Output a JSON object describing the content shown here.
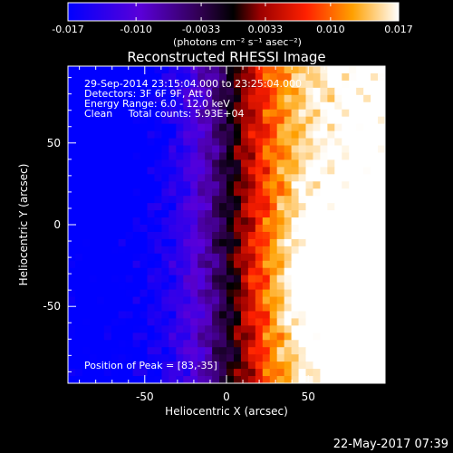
{
  "chart_data": {
    "type": "heatmap",
    "title": "Reconstructed RHESSI Image",
    "colorbar": {
      "range": [
        -0.017,
        0.017
      ],
      "ticks": [
        -0.017,
        -0.01,
        -0.0033,
        0.0033,
        0.01,
        0.017
      ],
      "tick_labels": [
        "-0.017",
        "-0.010",
        "-0.0033",
        "0.0033",
        "0.010",
        "0.017"
      ],
      "unit_label": "(photons cm⁻² s⁻¹ asec⁻²)",
      "colormap": [
        "#0000ff",
        "#7f00ff",
        "#000000",
        "#ff0000",
        "#ff8000",
        "#ffffff"
      ]
    },
    "xlabel": "Heliocentric X (arcsec)",
    "ylabel": "Heliocentric Y (arcsec)",
    "xlim": [
      -97,
      97
    ],
    "ylim": [
      -97,
      97
    ],
    "xticks": [
      -50,
      0,
      50
    ],
    "yticks": [
      -50,
      0,
      50
    ],
    "xtick_labels": [
      "-50",
      "0",
      "50"
    ],
    "ytick_labels": [
      "-50",
      "0",
      "50"
    ],
    "info_lines": [
      "29-Sep-2014 23:15:04.000 to 23:25:04.000",
      "Detectors: 3F 6F 9F, Att 0",
      "Energy Range: 6.0 - 12.0 keV",
      "Clean     Total counts: 5.93E+04"
    ],
    "peak_label": "Position of Peak = [83,-35]",
    "peak": [
      83,
      -35
    ],
    "image_grid": {
      "nx": 44,
      "ny": 44,
      "description_of_field": "intensity increases from negative (blue/purple) on the left to positive (orange/yellow) on the right; boundary near x = 0; brightest near peak"
    }
  },
  "footer": {
    "timestamp": "22-May-2017 07:39"
  }
}
